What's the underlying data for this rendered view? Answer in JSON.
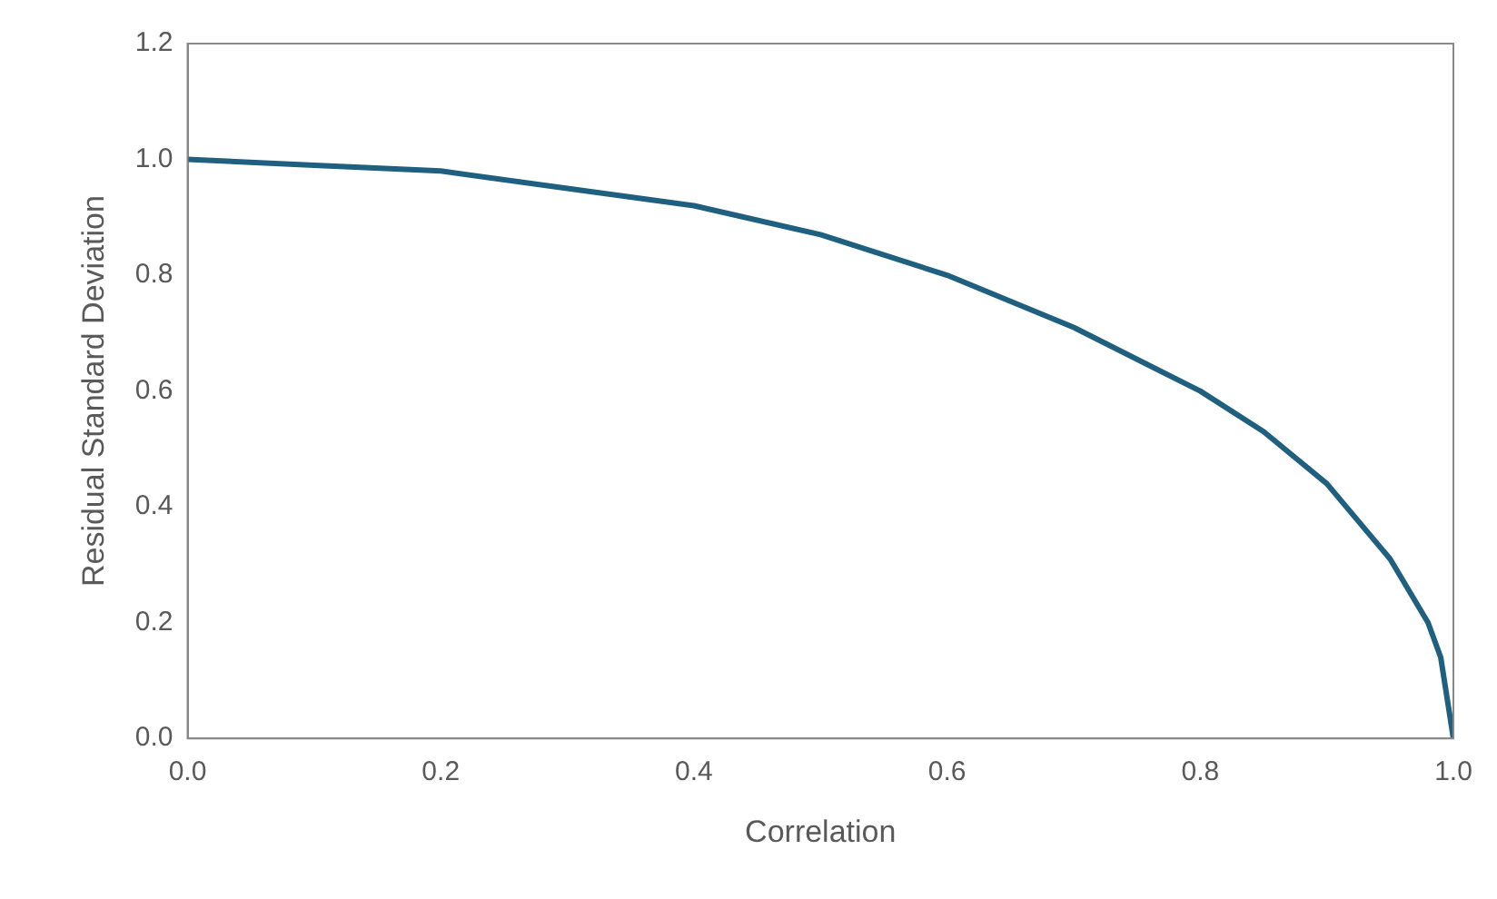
{
  "chart_data": {
    "type": "line",
    "xlabel": "Correlation",
    "ylabel": "Residual Standard Deviation",
    "x": [
      0,
      0.1,
      0.2,
      0.3,
      0.4,
      0.5,
      0.6,
      0.7,
      0.8,
      0.85,
      0.9,
      0.95,
      0.98,
      0.99,
      1.0
    ],
    "series": [
      {
        "color": "#1f5f7f",
        "values": [
          1.0,
          0.99,
          0.98,
          0.95,
          0.92,
          0.87,
          0.8,
          0.71,
          0.6,
          0.53,
          0.44,
          0.31,
          0.2,
          0.14,
          0.0
        ]
      }
    ],
    "xlim": [
      0,
      1
    ],
    "xticks": [
      {
        "value": 0,
        "label": "0.0"
      },
      {
        "value": 0.2,
        "label": "0.2"
      },
      {
        "value": 0.4,
        "label": "0.4"
      },
      {
        "value": 0.6,
        "label": "0.6"
      },
      {
        "value": 0.8,
        "label": "0.8"
      },
      {
        "value": 1,
        "label": "1.0"
      }
    ],
    "ylim": [
      0,
      1.2
    ],
    "yticks": [
      {
        "value": 0,
        "label": "0.0"
      },
      {
        "value": 0.2,
        "label": "0.2"
      },
      {
        "value": 0.4,
        "label": "0.4"
      },
      {
        "value": 0.6,
        "label": "0.6"
      },
      {
        "value": 0.8,
        "label": "0.8"
      },
      {
        "value": 1,
        "label": "1.0"
      },
      {
        "value": 1.2,
        "label": "1.2"
      }
    ],
    "grid": false,
    "legend": false,
    "marker": "none",
    "line_style": "solid"
  }
}
